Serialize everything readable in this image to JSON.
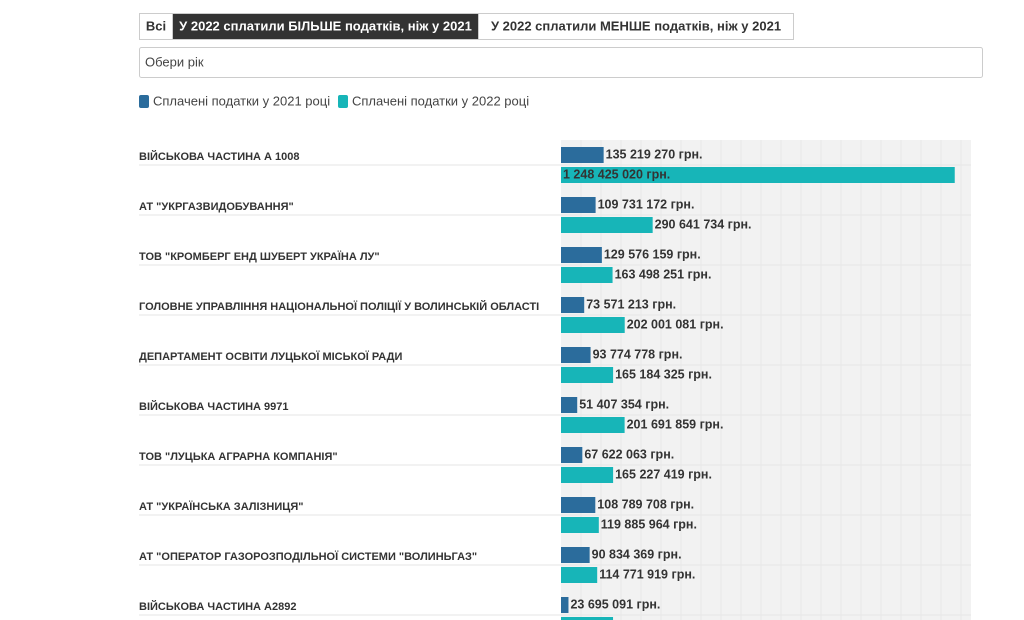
{
  "tabs": [
    "Всі",
    "У 2022 сплатили БІЛЬШЕ податків, ніж у 2021",
    "У 2022 сплатили МЕНШЕ податків, ніж у 2021"
  ],
  "active_tab": 1,
  "year_select": "Обери рік",
  "chart_data": {
    "type": "hbar",
    "categories": [
      "ВІЙСЬКОВА ЧАСТИНА А 1008",
      "АТ \"УКРГАЗВИДОБУВАННЯ\"",
      "ТОВ \"КРОМБЕРГ ЕНД ШУБЕРТ УКРАЇНА ЛУ\"",
      "ГОЛОВНЕ УПРАВЛІННЯ НАЦІОНАЛЬНОЇ ПОЛІЦІЇ У ВОЛИНСЬКІЙ ОБЛАСТІ",
      "ДЕПАРТАМЕНТ ОСВІТИ ЛУЦЬКОЇ МІСЬКОЇ РАДИ",
      "ВІЙСЬКОВА ЧАСТИНА 9971",
      "ТОВ \"ЛУЦЬКА АГРАРНА КОМПАНІЯ\"",
      "АТ \"УКРАЇНСЬКА ЗАЛІЗНИЦЯ\"",
      "АТ \"ОПЕРАТОР ГАЗОРОЗПОДІЛЬНОЇ СИСТЕМИ \"ВОЛИНЬГАЗ\"",
      "ВІЙСЬКОВА ЧАСТИНА А2892"
    ],
    "series": [
      {
        "name": "Сплачені податки у 2021 році",
        "color": "#2b6c9c",
        "values": [
          135219270,
          109731172,
          129576159,
          73571213,
          93774778,
          51407354,
          67622063,
          108789708,
          90834369,
          23695091
        ],
        "value_labels": [
          "135 219 270 грн.",
          "109 731 172 грн.",
          "129 576 159 грн.",
          "73 571 213 грн.",
          "93 774 778 грн.",
          "51 407 354 грн.",
          "67 622 063 грн.",
          "108 789 708 грн.",
          "90 834 369 грн.",
          "23 695 091 грн."
        ]
      },
      {
        "name": "Сплачені податки у 2022 році",
        "color": "#17b5b8",
        "values": [
          1248425020,
          290641734,
          163498251,
          202001081,
          165184325,
          201691859,
          165227419,
          119885964,
          114771919,
          165000000
        ],
        "value_labels": [
          "1 248 425 020 грн.",
          "290 641 734 грн.",
          "163 498 251 грн.",
          "202 001 081 грн.",
          "165 184 325 грн.",
          "201 691 859 грн.",
          "165 227 419 грн.",
          "119 885 964 грн.",
          "114 771 919 грн.",
          null
        ]
      }
    ],
    "xlim": [
      0,
      1300000000
    ]
  }
}
